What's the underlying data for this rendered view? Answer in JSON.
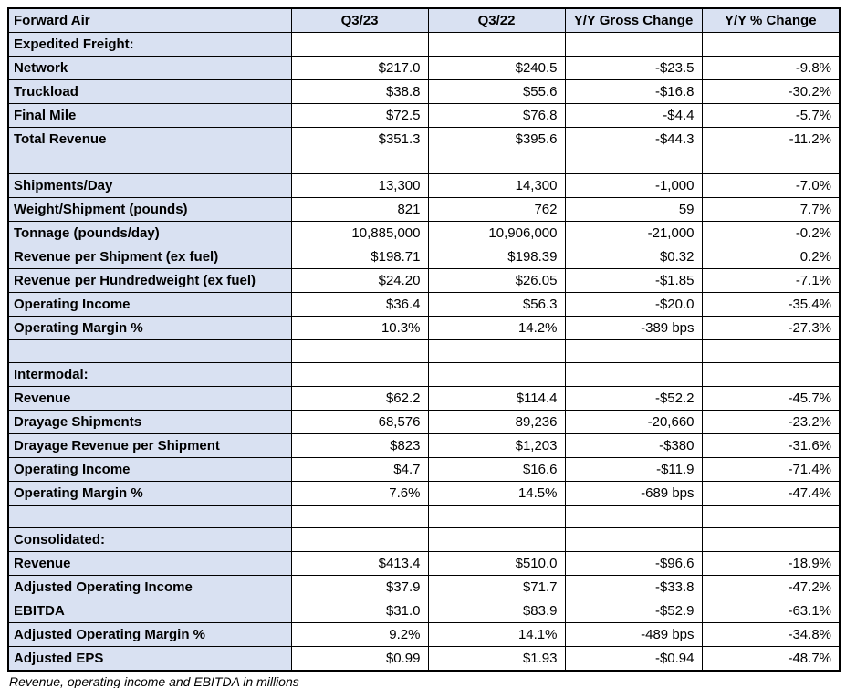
{
  "chart_data": {
    "type": "table",
    "title": "Forward Air",
    "columns": [
      "Forward Air",
      "Q3/23",
      "Q3/22",
      "Y/Y Gross Change",
      "Y/Y % Change"
    ],
    "rows": [
      {
        "type": "section",
        "label": "Expedited Freight:",
        "values": [
          "",
          "",
          "",
          ""
        ]
      },
      {
        "type": "data",
        "label": "Network",
        "values": [
          "$217.0",
          "$240.5",
          "-$23.5",
          "-9.8%"
        ]
      },
      {
        "type": "data",
        "label": "Truckload",
        "values": [
          "$38.8",
          "$55.6",
          "-$16.8",
          "-30.2%"
        ]
      },
      {
        "type": "data",
        "label": "Final Mile",
        "values": [
          "$72.5",
          "$76.8",
          "-$4.4",
          "-5.7%"
        ]
      },
      {
        "type": "data",
        "label": "Total Revenue",
        "values": [
          "$351.3",
          "$395.6",
          "-$44.3",
          "-11.2%"
        ]
      },
      {
        "type": "spacer",
        "label": "",
        "values": [
          "",
          "",
          "",
          ""
        ]
      },
      {
        "type": "data",
        "label": "Shipments/Day",
        "values": [
          "13,300",
          "14,300",
          "-1,000",
          "-7.0%"
        ]
      },
      {
        "type": "data",
        "label": "Weight/Shipment (pounds)",
        "values": [
          "821",
          "762",
          "59",
          "7.7%"
        ]
      },
      {
        "type": "data",
        "label": "Tonnage (pounds/day)",
        "values": [
          "10,885,000",
          "10,906,000",
          "-21,000",
          "-0.2%"
        ]
      },
      {
        "type": "data",
        "label": "Revenue per Shipment (ex fuel)",
        "values": [
          "$198.71",
          "$198.39",
          "$0.32",
          "0.2%"
        ]
      },
      {
        "type": "data",
        "label": "Revenue per Hundredweight (ex fuel)",
        "values": [
          "$24.20",
          "$26.05",
          "-$1.85",
          "-7.1%"
        ]
      },
      {
        "type": "data",
        "label": "Operating Income",
        "values": [
          "$36.4",
          "$56.3",
          "-$20.0",
          "-35.4%"
        ]
      },
      {
        "type": "data",
        "label": "Operating Margin %",
        "values": [
          "10.3%",
          "14.2%",
          "-389 bps",
          "-27.3%"
        ]
      },
      {
        "type": "spacer",
        "label": "",
        "values": [
          "",
          "",
          "",
          ""
        ]
      },
      {
        "type": "section",
        "label": "Intermodal:",
        "values": [
          "",
          "",
          "",
          ""
        ]
      },
      {
        "type": "data",
        "label": "Revenue",
        "values": [
          "$62.2",
          "$114.4",
          "-$52.2",
          "-45.7%"
        ]
      },
      {
        "type": "data",
        "label": "Drayage Shipments",
        "values": [
          "68,576",
          "89,236",
          "-20,660",
          "-23.2%"
        ]
      },
      {
        "type": "data",
        "label": "Drayage Revenue per Shipment",
        "values": [
          "$823",
          "$1,203",
          "-$380",
          "-31.6%"
        ]
      },
      {
        "type": "data",
        "label": "Operating Income",
        "values": [
          "$4.7",
          "$16.6",
          "-$11.9",
          "-71.4%"
        ]
      },
      {
        "type": "data",
        "label": "Operating Margin %",
        "values": [
          "7.6%",
          "14.5%",
          "-689 bps",
          "-47.4%"
        ]
      },
      {
        "type": "spacer",
        "label": "",
        "values": [
          "",
          "",
          "",
          ""
        ]
      },
      {
        "type": "section",
        "label": "Consolidated:",
        "values": [
          "",
          "",
          "",
          ""
        ]
      },
      {
        "type": "data",
        "label": "Revenue",
        "values": [
          "$413.4",
          "$510.0",
          "-$96.6",
          "-18.9%"
        ]
      },
      {
        "type": "data",
        "label": "Adjusted Operating Income",
        "values": [
          "$37.9",
          "$71.7",
          "-$33.8",
          "-47.2%"
        ]
      },
      {
        "type": "data",
        "label": "EBITDA",
        "values": [
          "$31.0",
          "$83.9",
          "-$52.9",
          "-63.1%"
        ]
      },
      {
        "type": "data",
        "label": "Adjusted Operating Margin %",
        "values": [
          "9.2%",
          "14.1%",
          "-489 bps",
          "-34.8%"
        ]
      },
      {
        "type": "data",
        "label": "Adjusted EPS",
        "values": [
          "$0.99",
          "$1.93",
          "-$0.94",
          "-48.7%"
        ]
      }
    ]
  },
  "footnote": "Revenue, operating income and EBITDA in millions",
  "colors": {
    "header_bg": "#D9E1F2",
    "label_bg": "#D9E1F2",
    "cell_bg": "#FFFFFF",
    "border": "#000000"
  }
}
